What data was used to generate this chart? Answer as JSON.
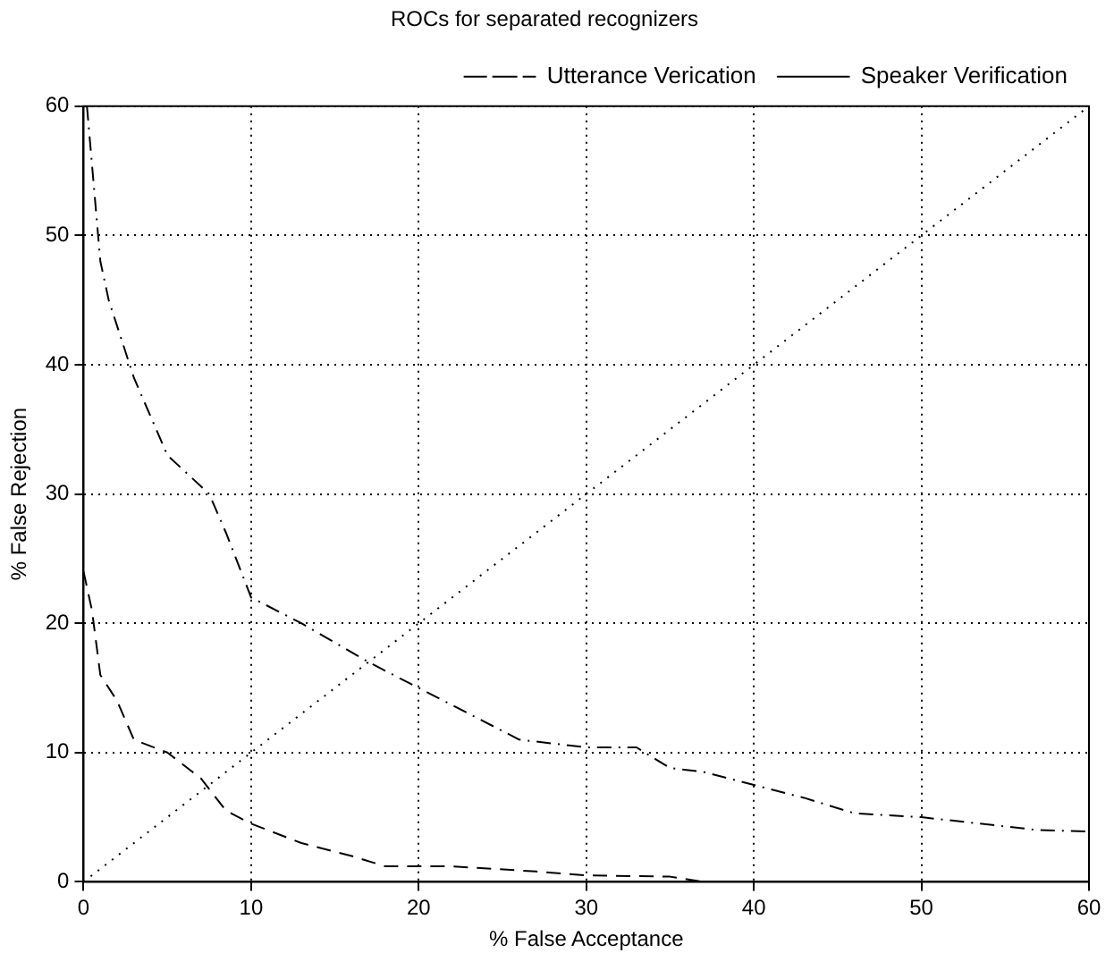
{
  "chart_data": {
    "type": "line",
    "title": "ROCs for separated recognizers",
    "xlabel": "% False Acceptance",
    "ylabel": "% False Rejection",
    "xlim": [
      0,
      60
    ],
    "ylim": [
      0,
      60
    ],
    "xticks": [
      0,
      10,
      20,
      30,
      40,
      50,
      60
    ],
    "yticks": [
      0,
      10,
      20,
      30,
      40,
      50,
      60
    ],
    "grid": true,
    "legend": "top right",
    "marker": "none",
    "series": [
      {
        "name": "Utterance Verication",
        "color": "#000000",
        "line_style": "dashdot",
        "x": [
          0.2,
          1,
          1.5,
          3,
          5,
          7.5,
          8.5,
          10,
          13,
          17,
          20,
          26,
          30,
          33,
          35,
          37,
          40,
          43,
          46,
          50,
          57,
          60
        ],
        "values": [
          60,
          48,
          45,
          39,
          33,
          30,
          27,
          22,
          20,
          17,
          15,
          11,
          10.4,
          10.4,
          8.8,
          8.5,
          7.5,
          6.5,
          5.3,
          5,
          4,
          3.9
        ]
      },
      {
        "name": "Speaker Verification",
        "color": "#000000",
        "line_style": "dashed",
        "x": [
          0,
          0.5,
          1,
          2,
          3,
          5,
          7,
          8.5,
          10,
          13,
          16,
          18,
          22,
          27,
          30,
          35,
          37
        ],
        "values": [
          24,
          21,
          16,
          14,
          11,
          10,
          8,
          5.5,
          4.5,
          3,
          2,
          1.2,
          1.2,
          0.8,
          0.5,
          0.4,
          0
        ]
      },
      {
        "color": "#000000",
        "line_style": "dotted",
        "x": [
          0,
          60
        ],
        "values": [
          0,
          60
        ]
      }
    ]
  }
}
